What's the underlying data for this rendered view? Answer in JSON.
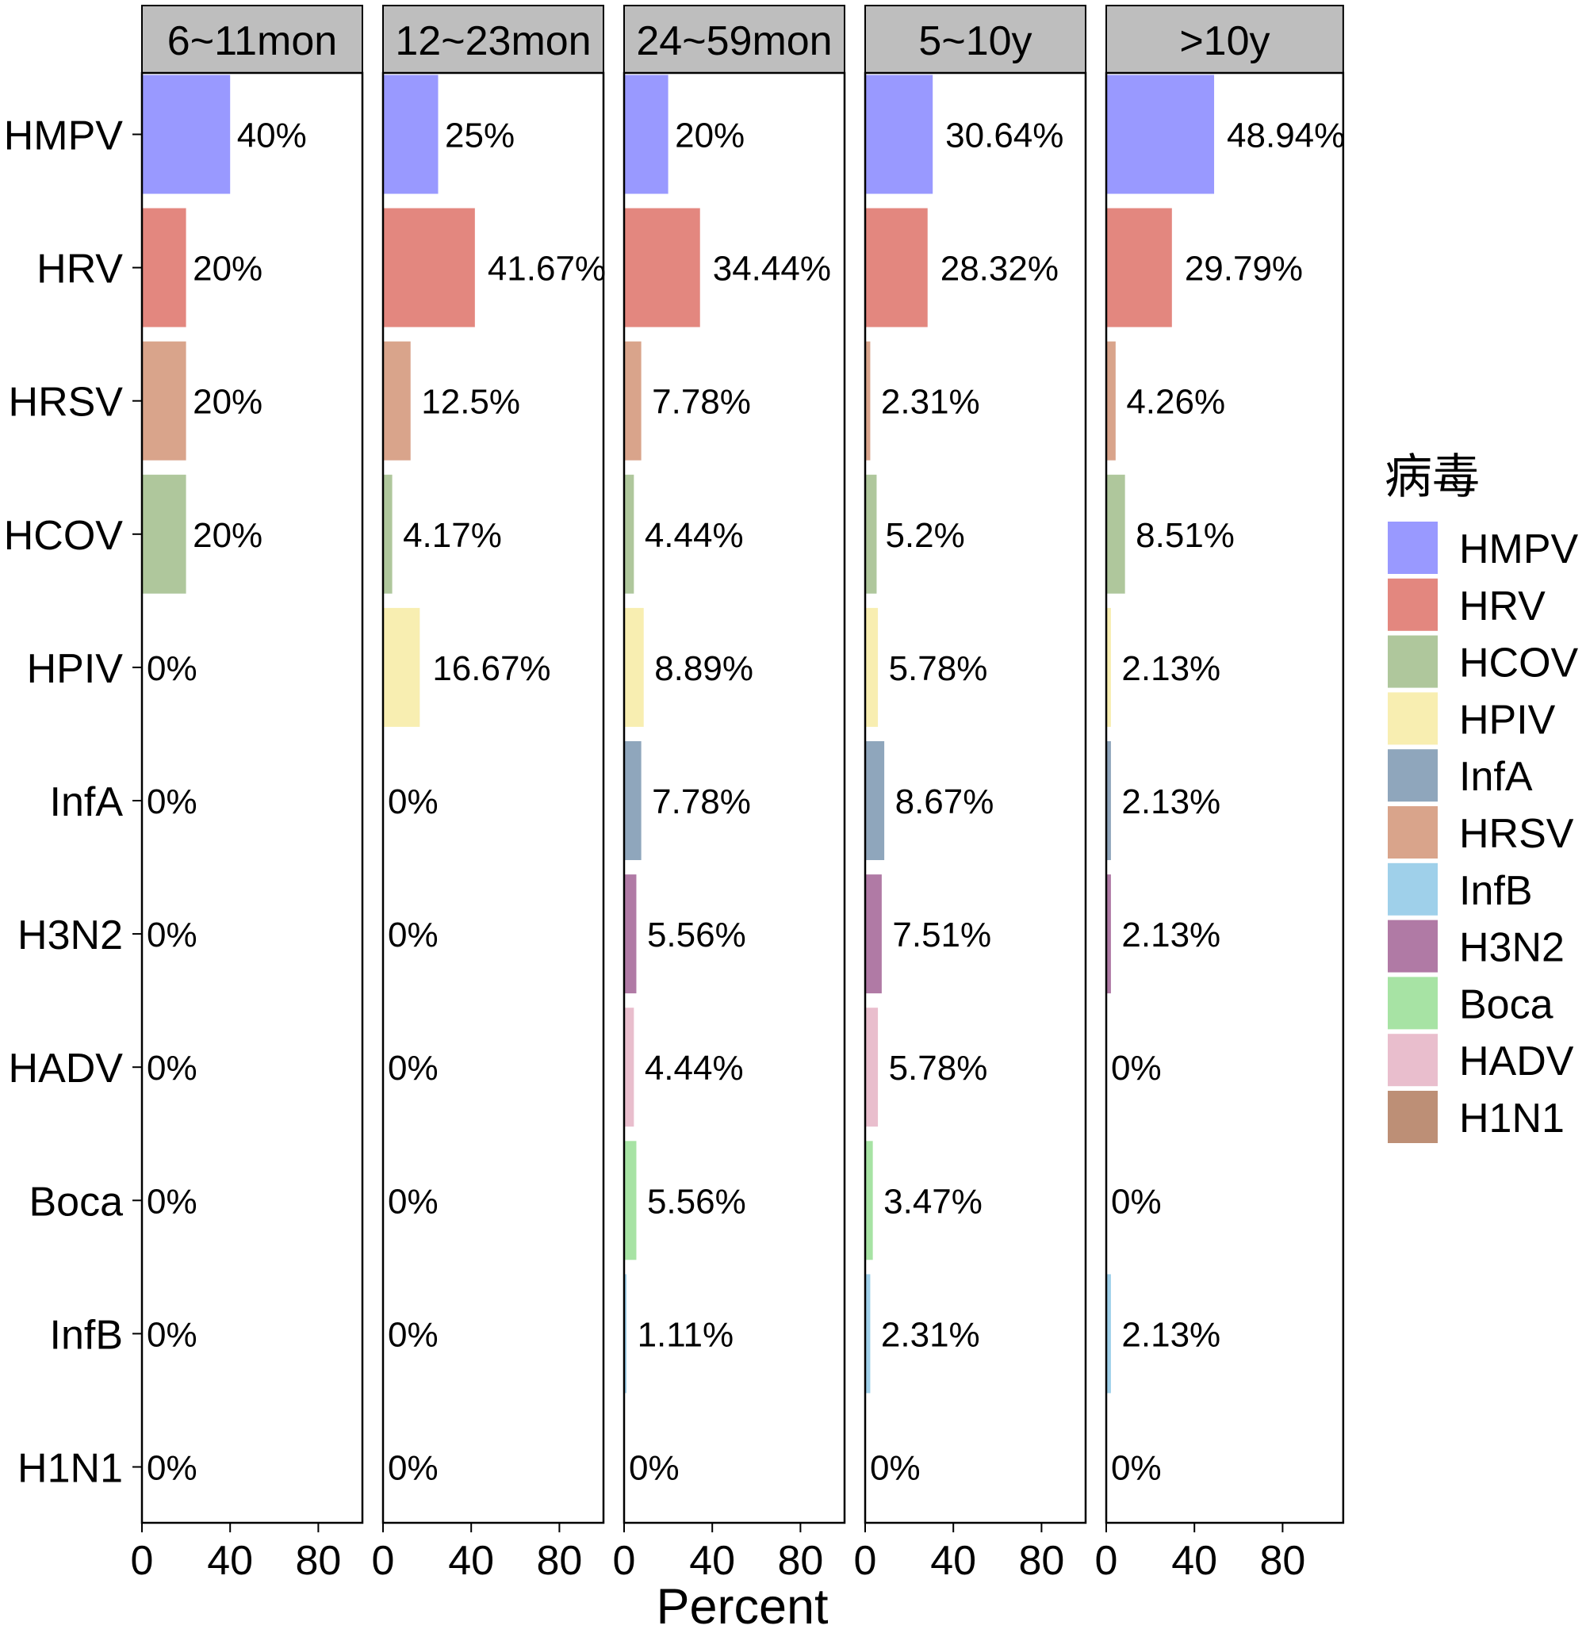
{
  "chart_data": {
    "type": "bar",
    "categories": [
      "HMPV",
      "HRV",
      "HRSV",
      "HCOV",
      "HPIV",
      "InfA",
      "H3N2",
      "HADV",
      "Boca",
      "InfB",
      "H1N1"
    ],
    "xlabel": "Percent",
    "ylabel": "",
    "x_ticks": [
      0,
      40,
      80
    ],
    "grid": false,
    "strip_color": "#BEBEBE",
    "legend": {
      "title": "病毒",
      "position": "right",
      "items": [
        {
          "name": "HMPV",
          "color": "#9999FF"
        },
        {
          "name": "HRV",
          "color": "#E3877F"
        },
        {
          "name": "HCOV",
          "color": "#AFC79C"
        },
        {
          "name": "HPIV",
          "color": "#F8EEB1"
        },
        {
          "name": "InfA",
          "color": "#8FA6BC"
        },
        {
          "name": "HRSV",
          "color": "#D9A48B"
        },
        {
          "name": "InfB",
          "color": "#9FD0EA"
        },
        {
          "name": "H3N2",
          "color": "#B07AA5"
        },
        {
          "name": "Boca",
          "color": "#A7E3A4"
        },
        {
          "name": "HADV",
          "color": "#E9BECD"
        },
        {
          "name": "H1N1",
          "color": "#BD8F76"
        }
      ]
    },
    "panels": [
      {
        "label": "6~11mon",
        "xlim": [
          0,
          100
        ],
        "values": [
          40,
          20,
          20,
          20,
          0,
          0,
          0,
          0,
          0,
          0,
          0
        ],
        "labels": [
          "40%",
          "20%",
          "20%",
          "20%",
          "0%",
          "0%",
          "0%",
          "0%",
          "0%",
          "0%",
          "0%"
        ]
      },
      {
        "label": "12~23mon",
        "xlim": [
          0,
          100
        ],
        "values": [
          25,
          41.67,
          12.5,
          4.17,
          16.67,
          0,
          0,
          0,
          0,
          0,
          0
        ],
        "labels": [
          "25%",
          "41.67%",
          "12.5%",
          "4.17%",
          "16.67%",
          "0%",
          "0%",
          "0%",
          "0%",
          "0%",
          "0%"
        ]
      },
      {
        "label": "24~59mon",
        "xlim": [
          0,
          100
        ],
        "values": [
          20,
          34.44,
          7.78,
          4.44,
          8.89,
          7.78,
          5.56,
          4.44,
          5.56,
          1.11,
          0
        ],
        "labels": [
          "20%",
          "34.44%",
          "7.78%",
          "4.44%",
          "8.89%",
          "7.78%",
          "5.56%",
          "4.44%",
          "5.56%",
          "1.11%",
          "0%"
        ]
      },
      {
        "label": "5~10y",
        "xlim": [
          0,
          100
        ],
        "values": [
          30.64,
          28.32,
          2.31,
          5.2,
          5.78,
          8.67,
          7.51,
          5.78,
          3.47,
          2.31,
          0
        ],
        "labels": [
          "30.64%",
          "28.32%",
          "2.31%",
          "5.2%",
          "5.78%",
          "8.67%",
          "7.51%",
          "5.78%",
          "3.47%",
          "2.31%",
          "0%"
        ]
      },
      {
        "label": ">10y",
        "xlim": [
          0,
          107.5
        ],
        "values": [
          48.94,
          29.79,
          4.26,
          8.51,
          2.13,
          2.13,
          2.13,
          0,
          0,
          2.13,
          0
        ],
        "labels": [
          "48.94%",
          "29.79%",
          "4.26%",
          "8.51%",
          "2.13%",
          "2.13%",
          "2.13%",
          "0%",
          "0%",
          "2.13%",
          "0%"
        ]
      }
    ]
  }
}
